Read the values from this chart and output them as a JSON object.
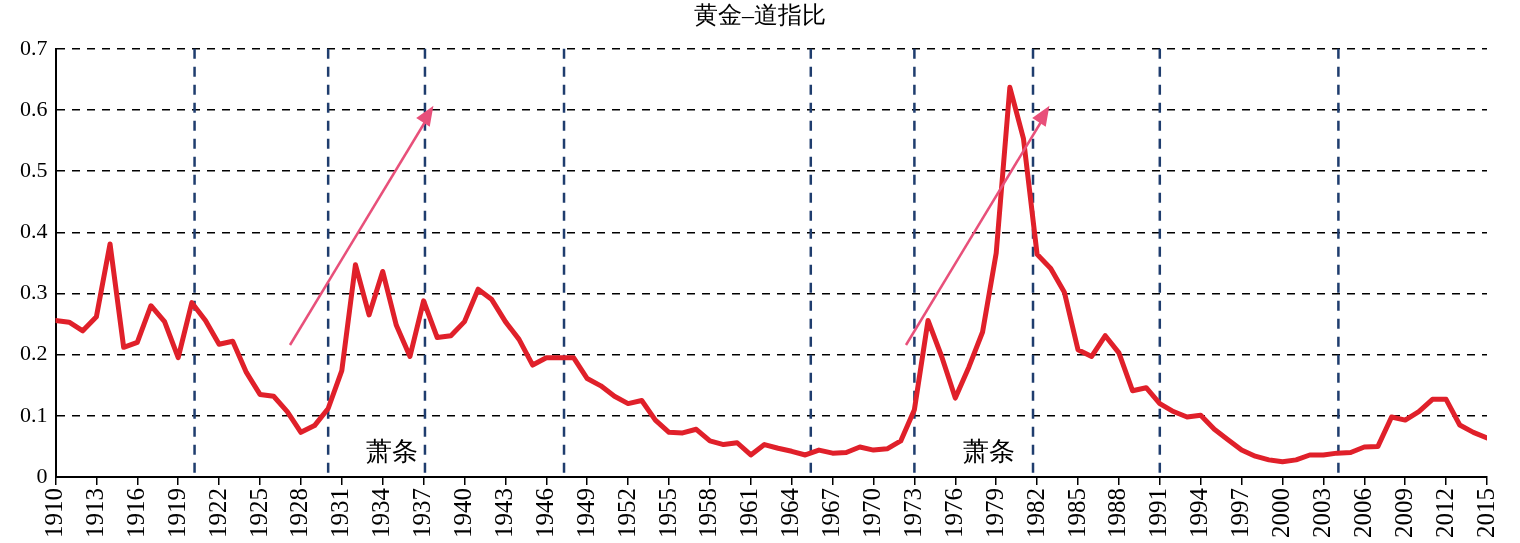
{
  "chart_data": {
    "type": "line",
    "title": "黄金–道指比",
    "x": [
      1910,
      1911,
      1912,
      1913,
      1914,
      1915,
      1916,
      1917,
      1918,
      1919,
      1920,
      1921,
      1922,
      1923,
      1924,
      1925,
      1926,
      1927,
      1928,
      1929,
      1930,
      1931,
      1932,
      1933,
      1934,
      1935,
      1936,
      1937,
      1938,
      1939,
      1940,
      1941,
      1942,
      1943,
      1944,
      1945,
      1946,
      1947,
      1948,
      1949,
      1950,
      1951,
      1952,
      1953,
      1954,
      1955,
      1956,
      1957,
      1958,
      1959,
      1960,
      1961,
      1962,
      1963,
      1964,
      1965,
      1966,
      1967,
      1968,
      1969,
      1970,
      1971,
      1972,
      1973,
      1974,
      1975,
      1976,
      1977,
      1978,
      1979,
      1980,
      1981,
      1982,
      1983,
      1984,
      1985,
      1986,
      1987,
      1988,
      1989,
      1990,
      1991,
      1992,
      1993,
      1994,
      1995,
      1996,
      1997,
      1998,
      1999,
      2000,
      2001,
      2002,
      2003,
      2004,
      2005,
      2006,
      2007,
      2008,
      2009,
      2010,
      2011,
      2012,
      2013,
      2014,
      2015
    ],
    "series": [
      {
        "color": "#e0202a",
        "values": [
          0.256,
          0.253,
          0.239,
          0.262,
          0.381,
          0.212,
          0.22,
          0.28,
          0.254,
          0.195,
          0.285,
          0.256,
          0.217,
          0.222,
          0.171,
          0.135,
          0.132,
          0.107,
          0.073,
          0.084,
          0.112,
          0.174,
          0.347,
          0.265,
          0.336,
          0.248,
          0.197,
          0.288,
          0.228,
          0.231,
          0.254,
          0.307,
          0.29,
          0.254,
          0.225,
          0.183,
          0.195,
          0.195,
          0.195,
          0.161,
          0.149,
          0.132,
          0.12,
          0.125,
          0.093,
          0.073,
          0.072,
          0.078,
          0.059,
          0.053,
          0.056,
          0.036,
          0.053,
          0.047,
          0.042,
          0.036,
          0.044,
          0.039,
          0.04,
          0.049,
          0.044,
          0.046,
          0.059,
          0.11,
          0.256,
          0.197,
          0.129,
          0.18,
          0.237,
          0.366,
          0.637,
          0.553,
          0.364,
          0.341,
          0.302,
          0.208,
          0.197,
          0.231,
          0.203,
          0.141,
          0.146,
          0.12,
          0.107,
          0.098,
          0.101,
          0.078,
          0.061,
          0.044,
          0.034,
          0.028,
          0.025,
          0.028,
          0.036,
          0.036,
          0.039,
          0.04,
          0.049,
          0.05,
          0.098,
          0.093,
          0.107,
          0.127,
          0.127,
          0.085,
          0.073,
          0.064
        ]
      }
    ],
    "xlim": [
      1910,
      2015
    ],
    "xticks": [
      1910,
      1913,
      1916,
      1919,
      1922,
      1925,
      1928,
      1931,
      1934,
      1937,
      1940,
      1943,
      1946,
      1949,
      1952,
      1955,
      1958,
      1961,
      1964,
      1967,
      1970,
      1973,
      1976,
      1979,
      1982,
      1985,
      1988,
      1991,
      1994,
      1997,
      2000,
      2003,
      2006,
      2009,
      2012,
      2015
    ],
    "ylim": [
      0,
      0.7
    ],
    "yticks": [
      0,
      0.1,
      0.2,
      0.3,
      0.4,
      0.5,
      0.6,
      0.7
    ],
    "grid": "y",
    "marker": "none",
    "line_style": "solid",
    "ref_lines": [
      {
        "axis": "x",
        "value": 1920.2,
        "color": "#1f3d6e",
        "line_style": "dashed"
      },
      {
        "axis": "x",
        "value": 1930,
        "color": "#1f3d6e",
        "line_style": "dashed"
      },
      {
        "axis": "x",
        "value": 1937.1,
        "color": "#1f3d6e",
        "line_style": "dashed"
      },
      {
        "axis": "x",
        "value": 1947.3,
        "color": "#1f3d6e",
        "line_style": "dashed"
      },
      {
        "axis": "x",
        "value": 1965.4,
        "color": "#1f3d6e",
        "line_style": "dashed"
      },
      {
        "axis": "x",
        "value": 1973,
        "color": "#1f3d6e",
        "line_style": "dashed"
      },
      {
        "axis": "x",
        "value": 1981.7,
        "color": "#1f3d6e",
        "line_style": "dashed"
      },
      {
        "axis": "x",
        "value": 1991,
        "color": "#1f3d6e",
        "line_style": "dashed"
      },
      {
        "axis": "x",
        "value": 2004.1,
        "color": "#1f3d6e",
        "line_style": "dashed"
      }
    ],
    "annotations": [
      "萧条",
      "萧条"
    ]
  }
}
